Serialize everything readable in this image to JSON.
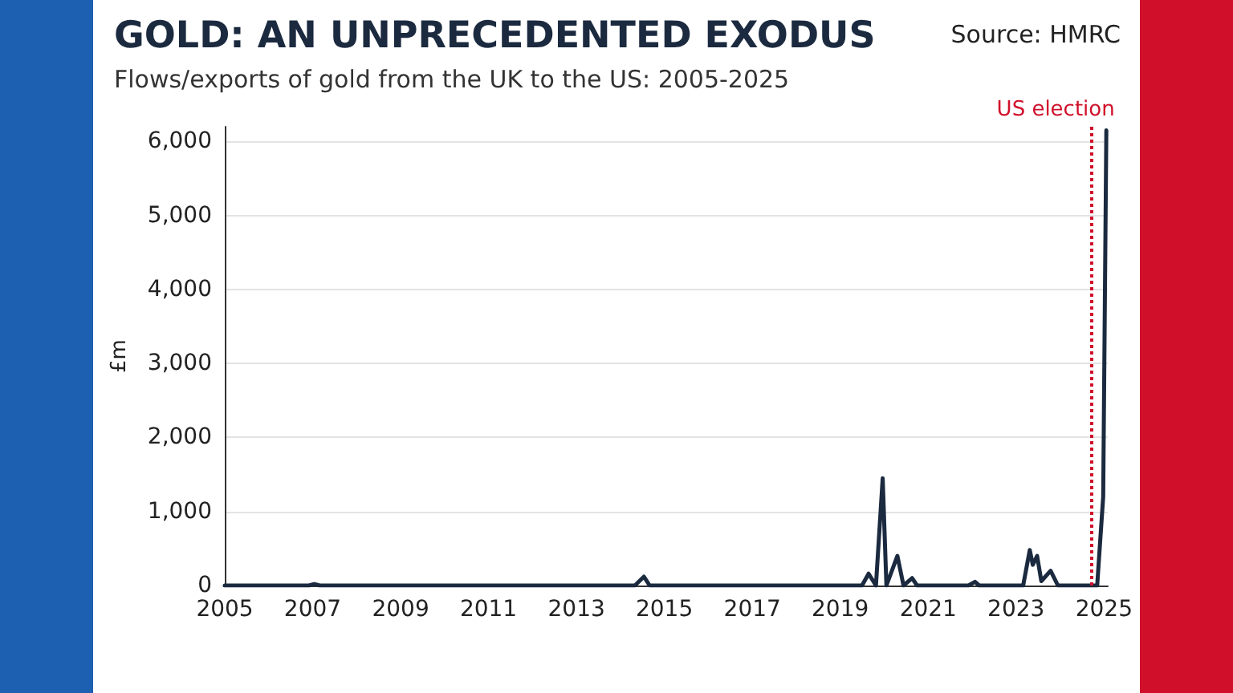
{
  "chart_data": {
    "type": "line",
    "title": "GOLD: AN UNPRECEDENTED EXODUS",
    "subtitle": "Flows/exports of gold from the UK to the US: 2005-2025",
    "ylabel": "£m",
    "annotations": [
      "Source: HMRC"
    ],
    "x": [
      "2005-01-01",
      "2006-12-01",
      "2007-01-15",
      "2007-03-01",
      "2014-05-01",
      "2014-07-15",
      "2014-09-01",
      "2019-07-01",
      "2019-08-25",
      "2019-10-25",
      "2019-12-20",
      "2020-01-20",
      "2020-04-20",
      "2020-06-10",
      "2020-08-20",
      "2020-10-01",
      "2021-12-01",
      "2022-01-25",
      "2022-03-01",
      "2023-03-01",
      "2023-04-25",
      "2023-05-20",
      "2023-06-25",
      "2023-07-30",
      "2023-10-15",
      "2023-12-15",
      "2024-11-05",
      "2024-12-25",
      "2025-01-20"
    ],
    "series": [
      {
        "color": "#1b2a3f",
        "values": [
          0,
          0,
          20,
          0,
          0,
          120,
          0,
          0,
          160,
          0,
          1450,
          0,
          400,
          0,
          100,
          0,
          0,
          50,
          0,
          0,
          480,
          280,
          400,
          60,
          200,
          0,
          0,
          1200,
          6150
        ]
      }
    ],
    "xlim": [
      "2005-01-01",
      "2025-02-01"
    ],
    "xticks": [
      {
        "value": "2005",
        "label": "2005"
      },
      {
        "value": "2007",
        "label": "2007"
      },
      {
        "value": "2009",
        "label": "2009"
      },
      {
        "value": "2011",
        "label": "2011"
      },
      {
        "value": "2013",
        "label": "2013"
      },
      {
        "value": "2015",
        "label": "2015"
      },
      {
        "value": "2017",
        "label": "2017"
      },
      {
        "value": "2019",
        "label": "2019"
      },
      {
        "value": "2021",
        "label": "2021"
      },
      {
        "value": "2023",
        "label": "2023"
      },
      {
        "value": "2025",
        "label": "2025"
      }
    ],
    "ylim": [
      0,
      6200
    ],
    "yticks": [
      0,
      {
        "value": 1000,
        "label": "1,000"
      },
      {
        "value": 2000,
        "label": "2,000"
      },
      {
        "value": 3000,
        "label": "3,000"
      },
      {
        "value": 4000,
        "label": "4,000"
      },
      {
        "value": 5000,
        "label": "5,000"
      },
      {
        "value": 6000,
        "label": "6,000"
      }
    ],
    "ref_lines": [
      {
        "axis": "x",
        "value": "2024-09-15",
        "label": "US election",
        "color": "#d0102a",
        "line_style": "dotted"
      }
    ],
    "grid": "y",
    "marker": "none",
    "line_style": "solid"
  }
}
